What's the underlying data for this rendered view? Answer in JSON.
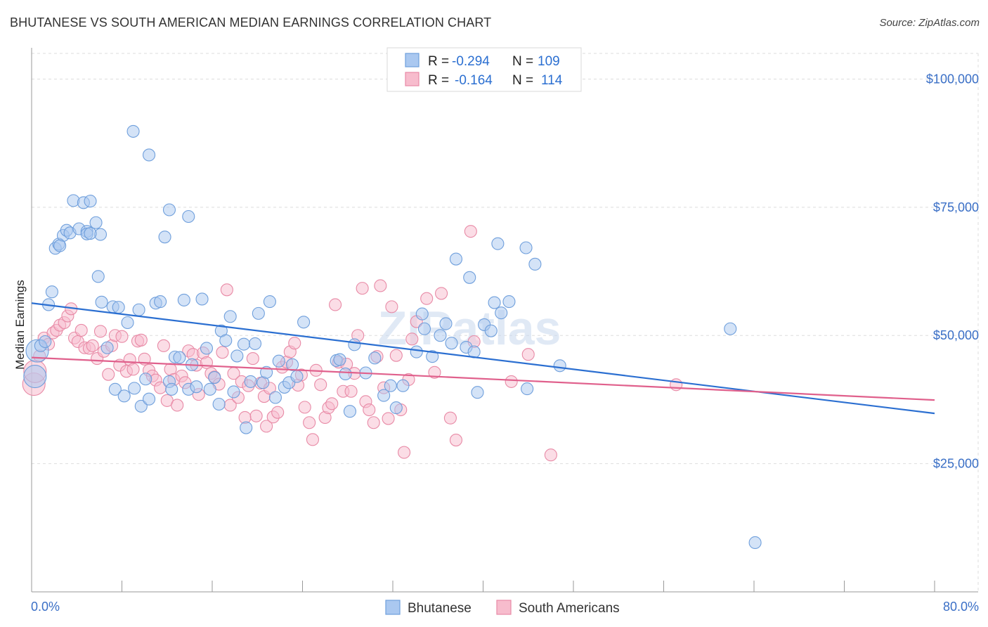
{
  "title": "BHUTANESE VS SOUTH AMERICAN MEDIAN EARNINGS CORRELATION CHART",
  "source": "Source: ZipAtlas.com",
  "watermark": "ZIPatlas",
  "colors": {
    "blue_fill": "#aac8f0",
    "blue_stroke": "#6f9fdc",
    "blue_line": "#2b6fd1",
    "pink_fill": "#f7bccd",
    "pink_stroke": "#e88aa6",
    "pink_line": "#e0608c",
    "tick_text": "#3a6fc6",
    "grid": "#dddddd"
  },
  "legend_top": [
    {
      "r_label": "R = ",
      "r_value": "-0.294",
      "n_label": "N = ",
      "n_value": "109",
      "series": "blue"
    },
    {
      "r_label": "R = ",
      "r_value": "-0.164",
      "n_label": "N = ",
      "n_value": "114",
      "series": "pink"
    }
  ],
  "legend_bottom": [
    "Bhutanese",
    "South Americans"
  ],
  "chart_data": {
    "type": "scatter",
    "title": "BHUTANESE VS SOUTH AMERICAN MEDIAN EARNINGS CORRELATION CHART",
    "xlabel": "",
    "ylabel": "Median Earnings",
    "xlim": [
      0,
      80
    ],
    "ylim": [
      0,
      105000
    ],
    "x_tick_labels": [
      "0.0%",
      "80.0%"
    ],
    "y_ticks": [
      25000,
      50000,
      75000,
      100000
    ],
    "y_tick_labels": [
      "$25,000",
      "$50,000",
      "$75,000",
      "$100,000"
    ],
    "series": [
      {
        "name": "Bhutanese",
        "color": "blue",
        "r": -0.294,
        "n": 109,
        "trend": [
          [
            0,
            56300
          ],
          [
            80,
            34800
          ]
        ],
        "points": [
          [
            0.3,
            42000
          ],
          [
            0.5,
            47000
          ],
          [
            0.8,
            48000
          ],
          [
            1.2,
            48800
          ],
          [
            1.5,
            56000
          ],
          [
            1.8,
            58500
          ],
          [
            2.1,
            67000
          ],
          [
            2.4,
            67800
          ],
          [
            2.8,
            69500
          ],
          [
            3.1,
            70500
          ],
          [
            3.4,
            70000
          ],
          [
            3.7,
            76300
          ],
          [
            4.2,
            70800
          ],
          [
            4.6,
            75900
          ],
          [
            4.9,
            70300
          ],
          [
            5.2,
            76200
          ],
          [
            5.7,
            72000
          ],
          [
            5.9,
            61500
          ],
          [
            6.2,
            56500
          ],
          [
            6.7,
            47600
          ],
          [
            7.2,
            55600
          ],
          [
            7.4,
            39500
          ],
          [
            7.7,
            55500
          ],
          [
            8.2,
            38200
          ],
          [
            8.5,
            52500
          ],
          [
            9.1,
            39700
          ],
          [
            9.5,
            55000
          ],
          [
            9.7,
            36200
          ],
          [
            10.1,
            41500
          ],
          [
            10.4,
            37600
          ],
          [
            11.0,
            56300
          ],
          [
            11.4,
            56600
          ],
          [
            11.8,
            69200
          ],
          [
            12.2,
            41000
          ],
          [
            12.4,
            39500
          ],
          [
            12.7,
            45800
          ],
          [
            13.1,
            45700
          ],
          [
            13.5,
            56900
          ],
          [
            13.9,
            39500
          ],
          [
            14.2,
            44300
          ],
          [
            14.6,
            40000
          ],
          [
            15.1,
            57100
          ],
          [
            15.5,
            47500
          ],
          [
            15.8,
            39500
          ],
          [
            16.2,
            41800
          ],
          [
            16.6,
            36600
          ],
          [
            16.8,
            50900
          ],
          [
            17.2,
            49000
          ],
          [
            17.6,
            53700
          ],
          [
            17.9,
            39000
          ],
          [
            18.2,
            46000
          ],
          [
            18.8,
            48300
          ],
          [
            19.0,
            32000
          ],
          [
            19.4,
            41000
          ],
          [
            19.8,
            48400
          ],
          [
            20.1,
            54300
          ],
          [
            20.5,
            40800
          ],
          [
            20.8,
            42800
          ],
          [
            21.1,
            56600
          ],
          [
            21.6,
            37900
          ],
          [
            21.9,
            45000
          ],
          [
            22.4,
            39900
          ],
          [
            22.8,
            40800
          ],
          [
            23.1,
            44300
          ],
          [
            23.5,
            42000
          ],
          [
            24.1,
            52600
          ],
          [
            27.0,
            45100
          ],
          [
            27.3,
            45300
          ],
          [
            27.8,
            42500
          ],
          [
            28.2,
            35200
          ],
          [
            28.6,
            48200
          ],
          [
            29.6,
            42700
          ],
          [
            30.4,
            45600
          ],
          [
            31.2,
            38300
          ],
          [
            31.8,
            40200
          ],
          [
            32.3,
            35900
          ],
          [
            32.9,
            40200
          ],
          [
            34.1,
            46800
          ],
          [
            34.6,
            54200
          ],
          [
            34.8,
            51300
          ],
          [
            35.5,
            45900
          ],
          [
            36.2,
            50000
          ],
          [
            36.7,
            52300
          ],
          [
            37.2,
            48500
          ],
          [
            37.6,
            64900
          ],
          [
            38.5,
            47700
          ],
          [
            38.8,
            61300
          ],
          [
            39.2,
            46800
          ],
          [
            39.5,
            38900
          ],
          [
            40.1,
            52100
          ],
          [
            40.7,
            50900
          ],
          [
            41.0,
            56400
          ],
          [
            41.3,
            67900
          ],
          [
            41.6,
            54400
          ],
          [
            42.3,
            56600
          ],
          [
            43.8,
            67100
          ],
          [
            43.9,
            39600
          ],
          [
            44.6,
            63900
          ],
          [
            46.8,
            44100
          ],
          [
            61.9,
            51300
          ],
          [
            64.1,
            9600
          ],
          [
            9.0,
            89800
          ],
          [
            10.4,
            85200
          ],
          [
            12.2,
            74500
          ],
          [
            13.9,
            73200
          ],
          [
            4.9,
            69800
          ],
          [
            6.1,
            69700
          ],
          [
            2.5,
            67500
          ],
          [
            5.2,
            69900
          ]
        ]
      },
      {
        "name": "South Americans",
        "color": "pink",
        "r": -0.164,
        "n": 114,
        "trend": [
          [
            0,
            45700
          ],
          [
            80,
            37400
          ]
        ],
        "points": [
          [
            0.2,
            40500
          ],
          [
            0.3,
            43000
          ],
          [
            0.7,
            46000
          ],
          [
            1.1,
            49500
          ],
          [
            1.5,
            48300
          ],
          [
            1.9,
            50500
          ],
          [
            2.2,
            51000
          ],
          [
            2.5,
            52000
          ],
          [
            2.9,
            52500
          ],
          [
            3.2,
            53800
          ],
          [
            3.5,
            55200
          ],
          [
            3.8,
            49500
          ],
          [
            4.1,
            48800
          ],
          [
            4.4,
            51000
          ],
          [
            4.7,
            47600
          ],
          [
            5.1,
            47500
          ],
          [
            5.4,
            48000
          ],
          [
            5.8,
            45500
          ],
          [
            6.1,
            50800
          ],
          [
            6.4,
            46900
          ],
          [
            6.8,
            42400
          ],
          [
            7.1,
            48000
          ],
          [
            7.4,
            50000
          ],
          [
            7.8,
            44200
          ],
          [
            8.0,
            49800
          ],
          [
            8.4,
            43000
          ],
          [
            8.7,
            45300
          ],
          [
            9.0,
            43400
          ],
          [
            9.4,
            48900
          ],
          [
            9.7,
            49100
          ],
          [
            10.0,
            45400
          ],
          [
            10.4,
            43200
          ],
          [
            10.7,
            42100
          ],
          [
            11.0,
            41300
          ],
          [
            11.4,
            39800
          ],
          [
            11.7,
            48000
          ],
          [
            12.0,
            37300
          ],
          [
            12.3,
            43400
          ],
          [
            12.6,
            41400
          ],
          [
            12.9,
            36400
          ],
          [
            13.3,
            42100
          ],
          [
            13.6,
            40800
          ],
          [
            13.9,
            47000
          ],
          [
            14.3,
            46300
          ],
          [
            14.6,
            44200
          ],
          [
            14.8,
            38500
          ],
          [
            15.2,
            46600
          ],
          [
            15.5,
            44700
          ],
          [
            15.9,
            42600
          ],
          [
            16.2,
            41900
          ],
          [
            16.6,
            40500
          ],
          [
            16.9,
            46700
          ],
          [
            17.3,
            58900
          ],
          [
            17.6,
            36400
          ],
          [
            17.9,
            42600
          ],
          [
            18.3,
            37900
          ],
          [
            18.6,
            41000
          ],
          [
            18.9,
            34000
          ],
          [
            19.2,
            40200
          ],
          [
            19.6,
            45500
          ],
          [
            19.9,
            34300
          ],
          [
            20.3,
            40700
          ],
          [
            20.6,
            38100
          ],
          [
            20.8,
            32300
          ],
          [
            21.1,
            39700
          ],
          [
            21.4,
            34100
          ],
          [
            21.8,
            35000
          ],
          [
            22.2,
            43800
          ],
          [
            22.6,
            44800
          ],
          [
            22.9,
            46800
          ],
          [
            23.3,
            48500
          ],
          [
            23.6,
            40300
          ],
          [
            23.9,
            42300
          ],
          [
            24.2,
            36000
          ],
          [
            24.6,
            33000
          ],
          [
            24.9,
            29700
          ],
          [
            25.2,
            43200
          ],
          [
            25.6,
            40400
          ],
          [
            26.0,
            34000
          ],
          [
            26.3,
            35900
          ],
          [
            26.6,
            36700
          ],
          [
            26.9,
            56000
          ],
          [
            27.2,
            44800
          ],
          [
            27.6,
            39100
          ],
          [
            27.9,
            44400
          ],
          [
            28.3,
            39100
          ],
          [
            28.6,
            42600
          ],
          [
            28.9,
            50000
          ],
          [
            29.3,
            59200
          ],
          [
            29.6,
            37100
          ],
          [
            29.9,
            35500
          ],
          [
            30.3,
            33000
          ],
          [
            30.6,
            45900
          ],
          [
            30.9,
            59700
          ],
          [
            31.2,
            39800
          ],
          [
            31.6,
            33800
          ],
          [
            31.9,
            55600
          ],
          [
            32.3,
            46100
          ],
          [
            32.7,
            35500
          ],
          [
            33.0,
            27200
          ],
          [
            33.4,
            41400
          ],
          [
            33.7,
            49300
          ],
          [
            34.1,
            52700
          ],
          [
            35.0,
            57200
          ],
          [
            35.7,
            42800
          ],
          [
            36.3,
            58200
          ],
          [
            37.1,
            33900
          ],
          [
            37.6,
            29600
          ],
          [
            38.9,
            70300
          ],
          [
            39.2,
            48800
          ],
          [
            42.5,
            41000
          ],
          [
            44.0,
            46300
          ],
          [
            46.0,
            26700
          ],
          [
            57.1,
            40400
          ]
        ]
      }
    ]
  }
}
